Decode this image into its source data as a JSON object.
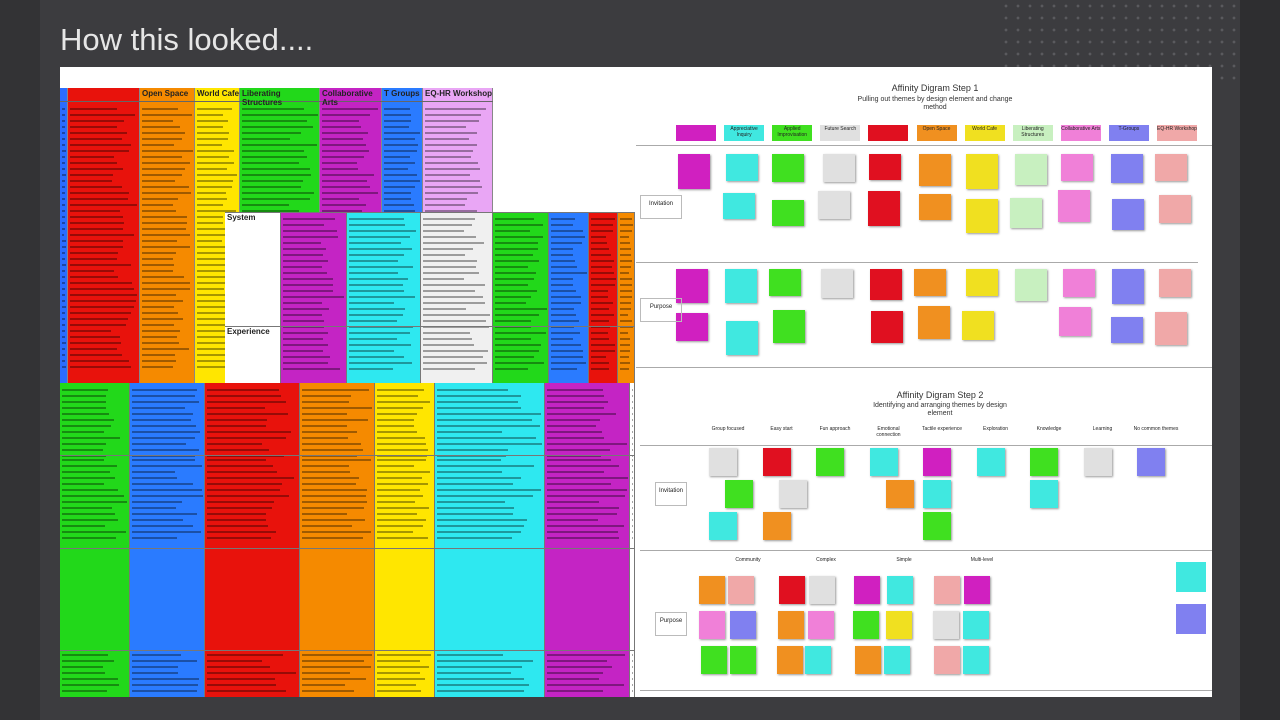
{
  "title": "How this looked....",
  "spreadsheet": {
    "headers": [
      "Open Space",
      "World Cafe",
      "Liberating Structures",
      "Collaborative Arts",
      "T Groups",
      "EQ-HR Workshop"
    ],
    "row_labels": [
      "System",
      "Experience"
    ]
  },
  "diagram1": {
    "title": "Affinity Digram Step 1",
    "subtitle": "Pulling out themes by design element and change method",
    "columns": [
      "Appreciative Inquiry",
      "Applied Improvisation",
      "Future Search",
      "Open Space",
      "World Cafe",
      "Liberating Structures",
      "Collaborative Arts",
      "T-Groups",
      "EQ-HR Workshop"
    ],
    "rows": [
      "Invitation",
      "Purpose"
    ]
  },
  "diagram2": {
    "title": "Affinity Digram Step 2",
    "subtitle": "Identifying and arranging themes by design element",
    "themes_top": [
      "Group focused",
      "Easy start",
      "Fun approach",
      "Emotional connection",
      "Tactile experience",
      "Exploration",
      "Knowledge",
      "Learning",
      "No common themes"
    ],
    "themes_bottom": [
      "Community",
      "Complex",
      "Simple",
      "Multi-level"
    ],
    "rows": [
      "Invitation",
      "Purpose"
    ]
  }
}
